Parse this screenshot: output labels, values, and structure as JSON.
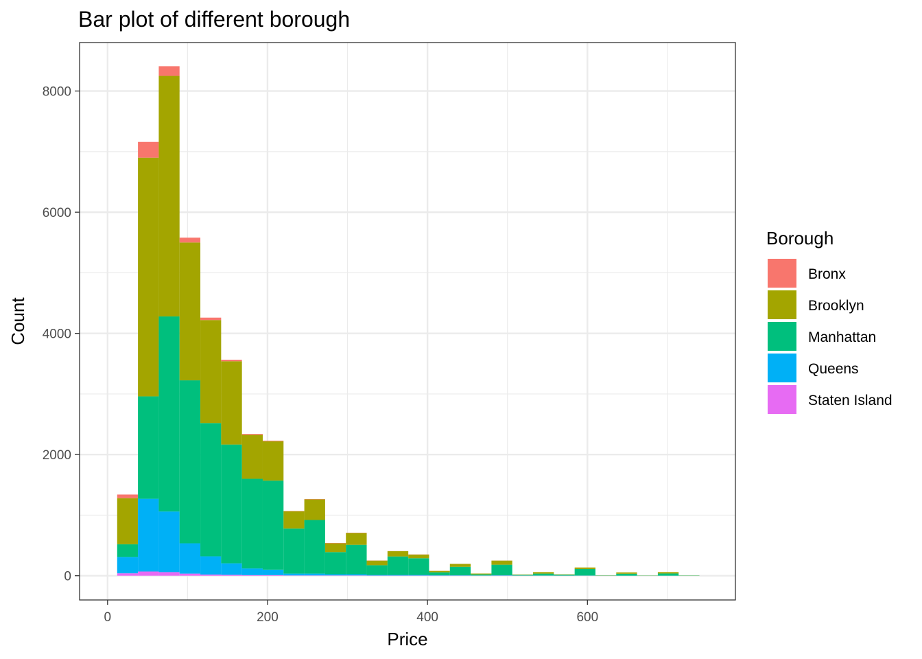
{
  "chart_data": {
    "type": "bar",
    "stacked": true,
    "title": "Bar plot of different borough",
    "xlabel": "Price",
    "ylabel": "Count",
    "x_ticks": [
      0,
      200,
      400,
      600
    ],
    "y_ticks": [
      0,
      2000,
      4000,
      6000,
      8000
    ],
    "xlim": [
      -35,
      785
    ],
    "ylim": [
      -400,
      8800
    ],
    "grid": true,
    "legend": {
      "title": "Borough",
      "position": "right"
    },
    "bins": [
      [
        12,
        38
      ],
      [
        38,
        64
      ],
      [
        64,
        90
      ],
      [
        90,
        116
      ],
      [
        116,
        142
      ],
      [
        142,
        168
      ],
      [
        168,
        194
      ],
      [
        194,
        220
      ],
      [
        220,
        246
      ],
      [
        246,
        272
      ],
      [
        272,
        298
      ],
      [
        298,
        324
      ],
      [
        324,
        350
      ],
      [
        350,
        376
      ],
      [
        376,
        402
      ],
      [
        402,
        428
      ],
      [
        428,
        454
      ],
      [
        454,
        480
      ],
      [
        480,
        506
      ],
      [
        506,
        532
      ],
      [
        532,
        558
      ],
      [
        558,
        584
      ],
      [
        584,
        610
      ],
      [
        610,
        636
      ],
      [
        636,
        662
      ],
      [
        662,
        688
      ],
      [
        688,
        714
      ],
      [
        714,
        740
      ]
    ],
    "series": [
      {
        "name": "Staten Island",
        "color": "#E76BF3",
        "values": [
          40,
          70,
          60,
          35,
          20,
          15,
          10,
          10,
          5,
          5,
          5,
          5,
          3,
          3,
          3,
          2,
          2,
          1,
          2,
          1,
          1,
          1,
          1,
          0,
          0,
          0,
          0,
          0
        ]
      },
      {
        "name": "Queens",
        "color": "#00B0F6",
        "values": [
          270,
          1200,
          1000,
          500,
          300,
          190,
          110,
          90,
          30,
          30,
          20,
          20,
          10,
          10,
          10,
          5,
          5,
          3,
          5,
          2,
          2,
          1,
          2,
          1,
          1,
          0,
          1,
          0
        ]
      },
      {
        "name": "Manhattan",
        "color": "#00BF7D",
        "values": [
          210,
          1690,
          3220,
          2690,
          2200,
          1960,
          1480,
          1470,
          745,
          885,
          365,
          485,
          160,
          305,
          275,
          50,
          140,
          19,
          175,
          10,
          32,
          15,
          107,
          4,
          32,
          3,
          36,
          4
        ]
      },
      {
        "name": "Brooklyn",
        "color": "#A3A500",
        "values": [
          760,
          3940,
          3970,
          2275,
          1700,
          1375,
          725,
          650,
          285,
          340,
          145,
          195,
          77,
          87,
          62,
          23,
          48,
          13,
          68,
          7,
          25,
          6,
          26,
          3,
          22,
          2,
          23,
          2
        ]
      },
      {
        "name": "Bronx",
        "color": "#F8766D",
        "values": [
          60,
          260,
          160,
          80,
          40,
          25,
          15,
          10,
          5,
          5,
          5,
          5,
          2,
          2,
          2,
          1,
          1,
          0,
          1,
          0,
          0,
          0,
          0,
          0,
          0,
          0,
          0,
          0
        ]
      }
    ]
  }
}
